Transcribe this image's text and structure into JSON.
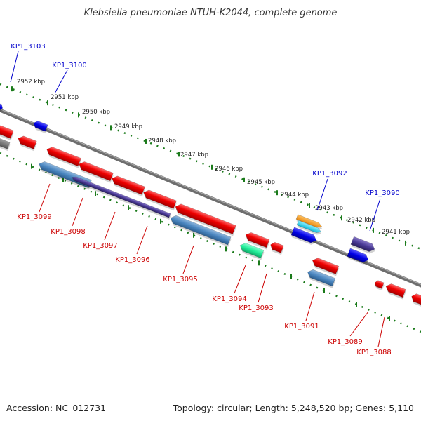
{
  "title": "Klebsiella pneumoniae NTUH-K2044, complete genome",
  "footer": {
    "accession": "Accession: NC_012731",
    "summary": "Topology: circular; Length: 5,248,520 bp; Genes: 5,110"
  },
  "colors": {
    "forward_label": "#0000cc",
    "reverse_label": "#cc0000",
    "backbone": "#777777",
    "ticks": "#1a7a1a"
  },
  "ticks": [
    "2952 kbp",
    "2951 kbp",
    "2950 kbp",
    "2949 kbp",
    "2948 kbp",
    "2947 kbp",
    "2946 kbp",
    "2945 kbp",
    "2944 kbp",
    "2943 kbp",
    "2942 kbp",
    "2941 kbp"
  ],
  "forward_labels": [
    "KP1_3103",
    "KP1_3100",
    "KP1_3092",
    "KP1_3090"
  ],
  "reverse_labels": [
    "KP1_3099",
    "KP1_3098",
    "KP1_3097",
    "KP1_3096",
    "KP1_3095",
    "KP1_3094",
    "KP1_3093",
    "KP1_3091",
    "KP1_3089",
    "KP1_3088"
  ]
}
